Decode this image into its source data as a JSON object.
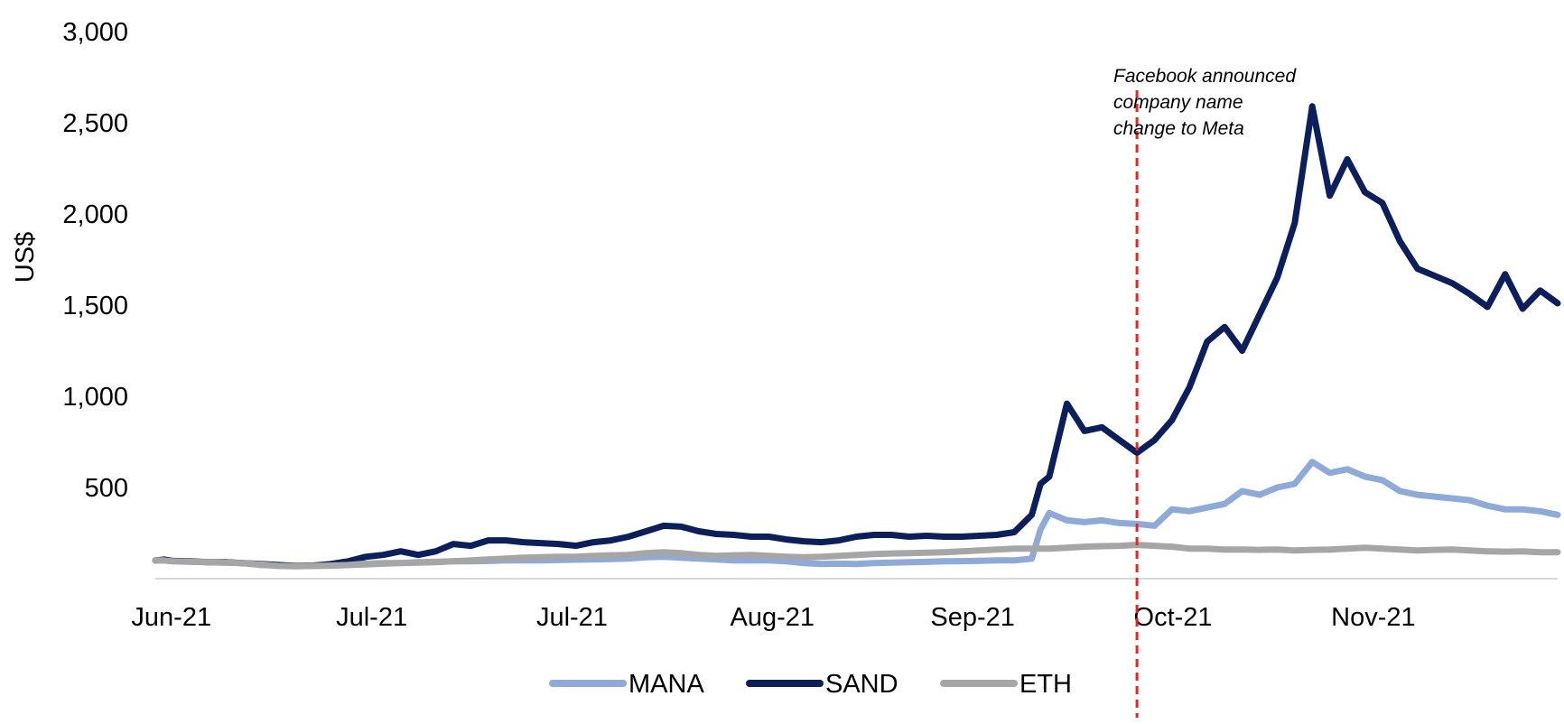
{
  "chart_data": {
    "type": "line",
    "ylabel": "US$",
    "ylim": [
      0,
      3000
    ],
    "yticks": [
      "3,000",
      "2,500",
      "2,000",
      "1,500",
      "1,000",
      "500"
    ],
    "ytick_values": [
      3000,
      2500,
      2000,
      1500,
      1000,
      500
    ],
    "xticks": [
      "Jun-21",
      "Jul-21",
      "Jul-21",
      "Aug-21",
      "Sep-21",
      "Oct-21",
      "Nov-21"
    ],
    "annotation": {
      "lines": [
        "Facebook announced",
        "company name",
        "change to Meta"
      ],
      "marker_x": 112.0,
      "color": "#e8251f"
    },
    "legend_position": "bottom",
    "x": [
      0,
      1,
      2,
      4,
      6,
      8,
      10,
      12,
      14,
      16,
      18,
      20,
      22,
      24,
      26,
      28,
      30,
      32,
      34,
      36,
      38,
      40,
      42,
      44,
      46,
      48,
      50,
      52,
      54,
      56,
      58,
      60,
      62,
      64,
      66,
      68,
      70,
      72,
      74,
      76,
      78,
      80,
      82,
      84,
      86,
      88,
      90,
      92,
      94,
      96,
      98,
      100,
      101,
      102,
      104,
      106,
      108,
      110,
      112,
      114,
      116,
      118,
      120,
      122,
      124,
      126,
      128,
      130,
      132,
      134,
      136,
      138,
      140,
      142,
      144,
      146,
      148,
      150,
      152,
      154,
      156,
      158,
      160
    ],
    "series": [
      {
        "name": "MANA",
        "color": "#8eaadb",
        "values": [
          100,
          100,
          96,
          93,
          90,
          88,
          85,
          75,
          72,
          70,
          70,
          72,
          75,
          78,
          82,
          86,
          90,
          92,
          95,
          95,
          97,
          100,
          100,
          100,
          102,
          104,
          106,
          108,
          110,
          118,
          120,
          115,
          110,
          105,
          100,
          100,
          100,
          95,
          85,
          80,
          82,
          80,
          85,
          88,
          90,
          92,
          95,
          96,
          98,
          100,
          100,
          110,
          270,
          360,
          320,
          310,
          320,
          305,
          300,
          290,
          380,
          370,
          390,
          410,
          480,
          460,
          500,
          520,
          640,
          580,
          600,
          560,
          540,
          480,
          460,
          450,
          440,
          430,
          400,
          380,
          380,
          370,
          350
        ]
      },
      {
        "name": "SAND",
        "color": "#0b1f5e",
        "values": [
          100,
          105,
          97,
          95,
          90,
          90,
          85,
          80,
          75,
          70,
          72,
          80,
          95,
          120,
          130,
          150,
          130,
          150,
          190,
          180,
          210,
          210,
          200,
          195,
          190,
          180,
          200,
          210,
          230,
          260,
          290,
          285,
          260,
          245,
          240,
          230,
          230,
          215,
          205,
          200,
          210,
          230,
          240,
          240,
          230,
          235,
          230,
          230,
          235,
          240,
          255,
          350,
          520,
          560,
          960,
          810,
          830,
          760,
          690,
          760,
          870,
          1050,
          1300,
          1380,
          1250,
          1450,
          1650,
          1950,
          2590,
          2100,
          2300,
          2120,
          2060,
          1850,
          1700,
          1660,
          1620,
          1560,
          1490,
          1670,
          1480,
          1580,
          1510
        ]
      },
      {
        "name": "ETH",
        "color": "#a6a6a6",
        "values": [
          100,
          100,
          95,
          93,
          90,
          88,
          85,
          78,
          70,
          68,
          70,
          72,
          75,
          82,
          85,
          85,
          88,
          90,
          95,
          100,
          105,
          110,
          115,
          118,
          120,
          120,
          125,
          128,
          130,
          140,
          145,
          140,
          130,
          125,
          128,
          130,
          125,
          120,
          118,
          120,
          125,
          130,
          135,
          138,
          140,
          142,
          145,
          150,
          155,
          160,
          165,
          165,
          165,
          165,
          170,
          175,
          178,
          180,
          185,
          180,
          175,
          165,
          165,
          160,
          160,
          158,
          160,
          155,
          158,
          160,
          165,
          170,
          165,
          160,
          155,
          158,
          160,
          155,
          150,
          148,
          150,
          145,
          145
        ]
      }
    ]
  }
}
